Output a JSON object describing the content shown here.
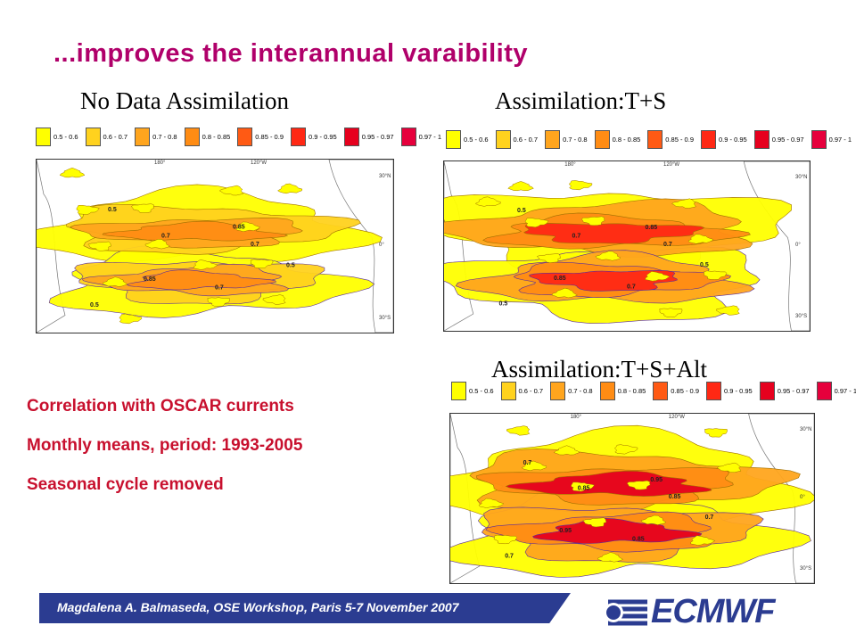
{
  "slide": {
    "title": "...improves the interannual varaibility",
    "panels": [
      {
        "title": "No Data Assimilation"
      },
      {
        "title": "Assimilation:T+S"
      },
      {
        "title": "Assimilation:T+S+Alt"
      }
    ],
    "legend": [
      {
        "label": "0.5 - 0.6",
        "color": "#ffff00"
      },
      {
        "label": "0.6 - 0.7",
        "color": "#ffd21e"
      },
      {
        "label": "0.7 - 0.8",
        "color": "#ffa51e"
      },
      {
        "label": "0.8 - 0.85",
        "color": "#ff8c14"
      },
      {
        "label": "0.85 - 0.9",
        "color": "#ff5a14"
      },
      {
        "label": "0.9 - 0.95",
        "color": "#ff2814"
      },
      {
        "label": "0.95 - 0.97",
        "color": "#e6001e"
      },
      {
        "label": "0.97 - 1",
        "color": "#e6003c"
      }
    ],
    "map_axis": {
      "lon_180": "180°",
      "lon_120w": "120°W",
      "lat_30n": "30°N",
      "lat_0": "0°",
      "lat_30s": "30°S"
    },
    "contour_labels": [
      "0.5",
      "0.7",
      "0.85",
      "0.95"
    ],
    "notes": [
      "Correlation with OSCAR currents",
      "Monthly means, period: 1993-2005",
      "Seasonal cycle removed"
    ],
    "footer": "Magdalena A. Balmaseda, OSE Workshop, Paris 5-7 November 2007",
    "logo": "ECMWF"
  }
}
